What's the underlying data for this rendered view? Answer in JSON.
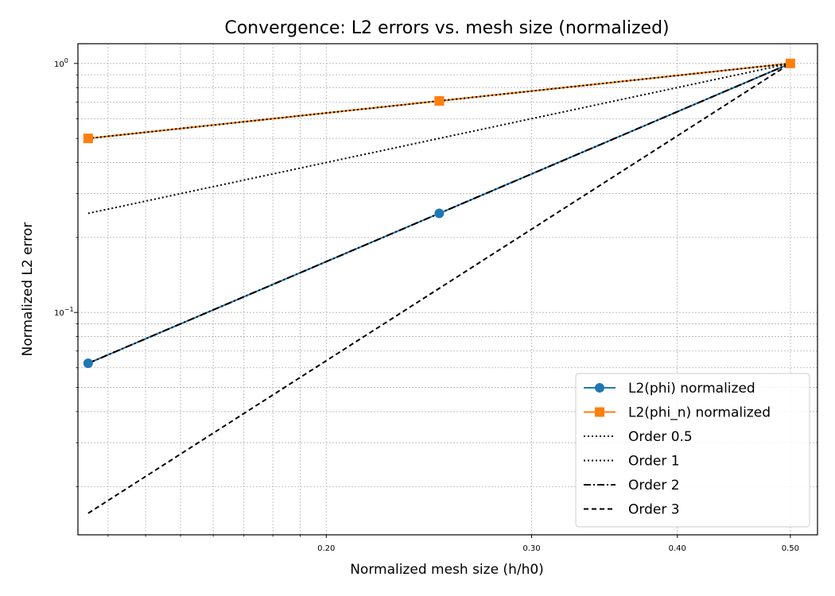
{
  "chart_data": {
    "type": "line",
    "title": "Convergence: L2 errors vs. mesh size (normalized)",
    "xlabel": "Normalized mesh size (h/h0)",
    "ylabel": "Normalized L2 error",
    "xscale": "log",
    "yscale": "log",
    "xlim": [
      0.1225,
      0.5275
    ],
    "ylim": [
      0.0128,
      1.2
    ],
    "x_ticks": [
      {
        "value": 0.2,
        "label": "0.20"
      },
      {
        "value": 0.3,
        "label": "0.30"
      },
      {
        "value": 0.4,
        "label": "0.40"
      },
      {
        "value": 0.5,
        "label": "0.50"
      }
    ],
    "y_ticks": [
      {
        "value": 0.1,
        "base": "10",
        "exp": "−1"
      },
      {
        "value": 1.0,
        "base": "10",
        "exp": "0"
      }
    ],
    "grid": true,
    "legend_position": "lower-right",
    "series": [
      {
        "name": "L2(phi) normalized",
        "x": [
          0.125,
          0.25,
          0.5
        ],
        "y": [
          0.0625,
          0.25,
          1.0
        ],
        "color": "#1f77b4",
        "dash": "solid",
        "marker": "circle"
      },
      {
        "name": "L2(phi_n) normalized",
        "x": [
          0.125,
          0.25,
          0.5
        ],
        "y": [
          0.5,
          0.7071,
          1.0
        ],
        "color": "#ff7f0e",
        "dash": "solid",
        "marker": "square"
      },
      {
        "name": "Order 0.5",
        "x": [
          0.125,
          0.5
        ],
        "y": [
          0.5,
          1.0
        ],
        "color": "#000000",
        "dash": "dotted",
        "marker": "none"
      },
      {
        "name": "Order 1",
        "x": [
          0.125,
          0.5
        ],
        "y": [
          0.25,
          1.0
        ],
        "color": "#000000",
        "dash": "dotted",
        "marker": "none"
      },
      {
        "name": "Order 2",
        "x": [
          0.125,
          0.5
        ],
        "y": [
          0.0625,
          1.0
        ],
        "color": "#000000",
        "dash": "dashdot",
        "marker": "none"
      },
      {
        "name": "Order 3",
        "x": [
          0.125,
          0.5
        ],
        "y": [
          0.015625,
          1.0
        ],
        "color": "#000000",
        "dash": "dashed",
        "marker": "none"
      }
    ]
  }
}
